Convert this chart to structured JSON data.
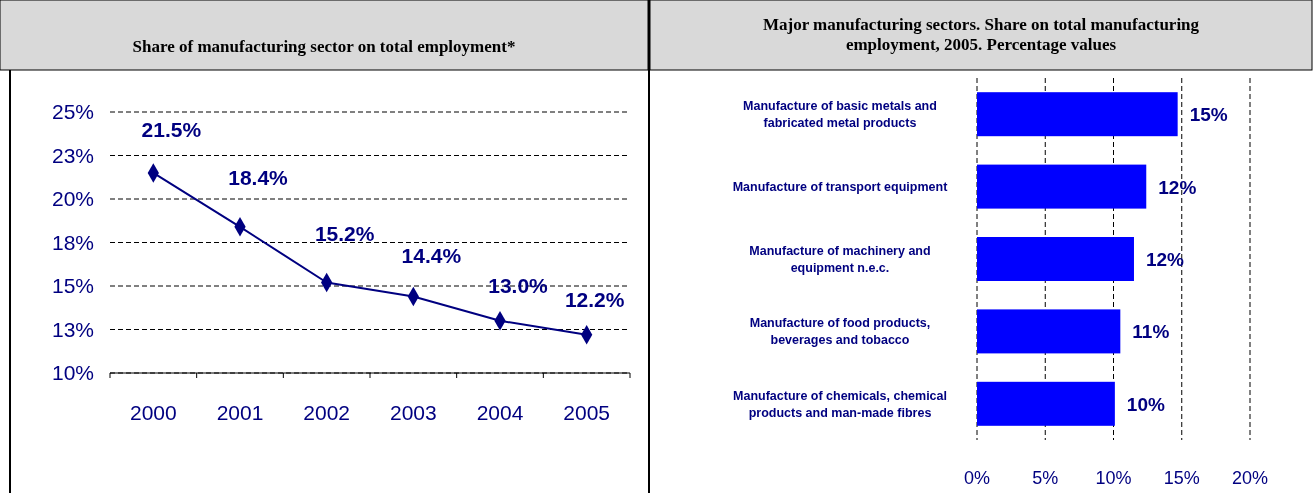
{
  "chart_data": [
    {
      "type": "line",
      "title": "Share of manufacturing sector on total employment*",
      "categories": [
        "2000",
        "2001",
        "2002",
        "2003",
        "2004",
        "2005"
      ],
      "series": [
        {
          "color": "#000080",
          "values": [
            21.5,
            18.4,
            15.2,
            14.4,
            13.0,
            12.2
          ],
          "value_labels": [
            "21.5%",
            "18.4%",
            "15.2%",
            "14.4%",
            "13.0%",
            "12.2%"
          ]
        }
      ],
      "ylim": [
        10,
        25
      ],
      "yticks": [
        {
          "value": 10,
          "label": "10%"
        },
        {
          "value": 12.5,
          "label": "13%"
        },
        {
          "value": 15,
          "label": "15%"
        },
        {
          "value": 17.5,
          "label": "18%"
        },
        {
          "value": 20,
          "label": "20%"
        },
        {
          "value": 22.5,
          "label": "23%"
        },
        {
          "value": 25,
          "label": "25%"
        }
      ],
      "grid": "y",
      "marker": "diamond",
      "line_style": "solid"
    },
    {
      "type": "bar",
      "orientation": "horizontal",
      "title": "Major manufacturing sectors. Share on total manufacturing employment, 2005. Percentage values",
      "categories": [
        "Manufacture of basic metals and fabricated metal products",
        "Manufacture of transport equipment",
        "Manufacture of machinery and equipment n.e.c.",
        "Manufacture of food products, beverages and tobacco",
        "Manufacture of chemicals, chemical products and man-made fibres"
      ],
      "values": [
        14.7,
        12.4,
        11.5,
        10.5,
        10.1
      ],
      "color": "#0000ff",
      "value_labels": [
        "15%",
        "12%",
        "12%",
        "11%",
        "10%"
      ],
      "xlim": [
        0,
        20
      ],
      "xticks": [
        {
          "value": 0,
          "label": "0%"
        },
        {
          "value": 5,
          "label": "5%"
        },
        {
          "value": 10,
          "label": "10%"
        },
        {
          "value": 15,
          "label": "15%"
        },
        {
          "value": 20,
          "label": "20%"
        }
      ],
      "grid": "x"
    }
  ]
}
